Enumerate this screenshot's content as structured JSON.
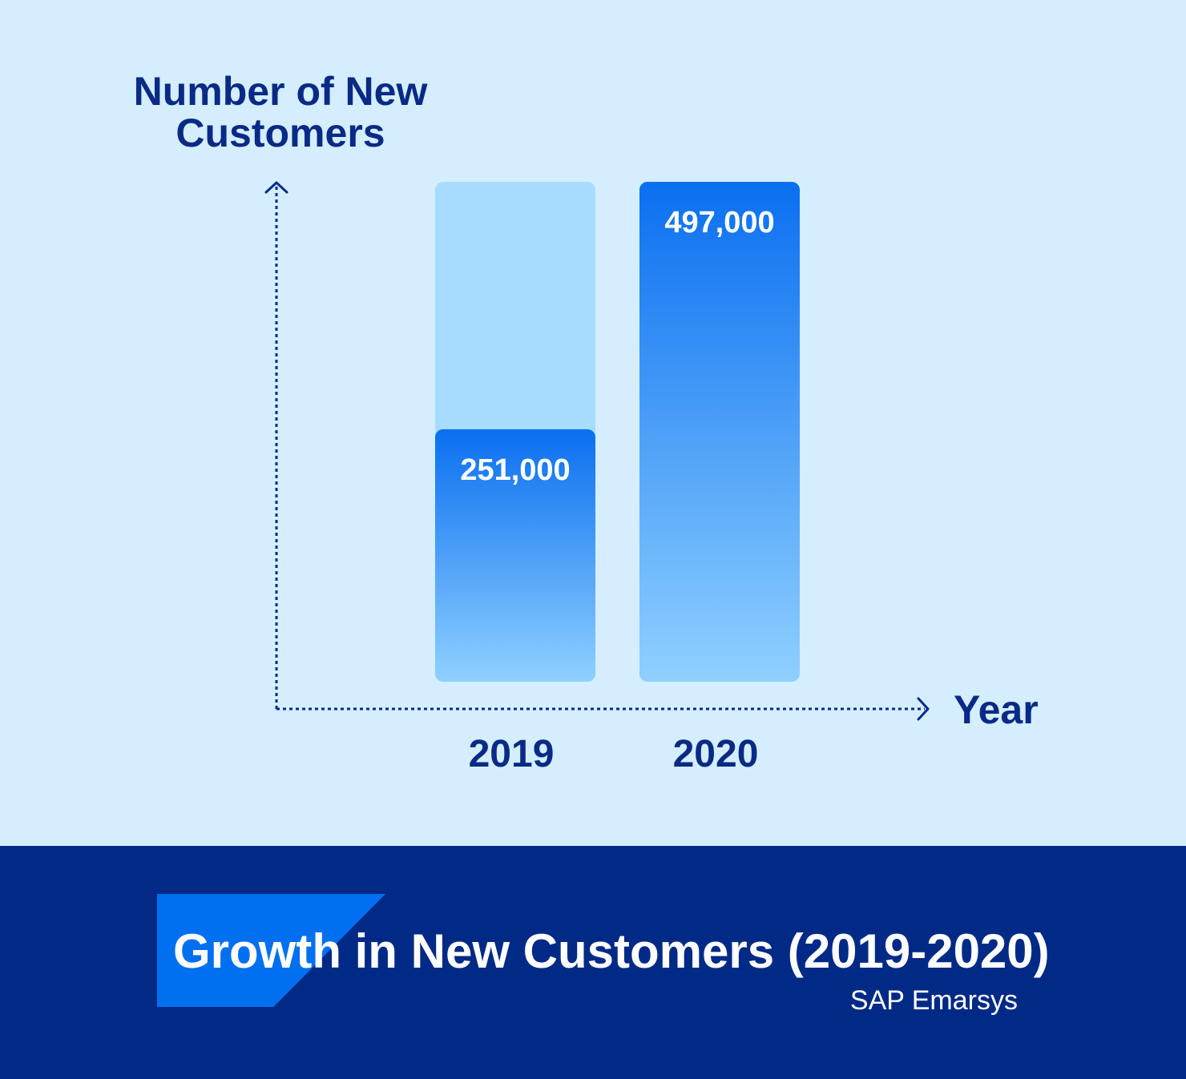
{
  "chart_data": {
    "type": "bar",
    "title": "Growth in New Customers (2019-2020)",
    "ylabel_lines": [
      "Number of New",
      "Customers"
    ],
    "xlabel": "Year",
    "categories": [
      "2019",
      "2020"
    ],
    "values": [
      251000,
      497000
    ],
    "value_labels": [
      "251,000",
      "497,000"
    ],
    "ylim": [
      0,
      497000
    ],
    "grid": false,
    "legend": "none",
    "colors": {
      "bar_top": "#0a6ff0",
      "bar_bottom": "#8fd0ff",
      "track": "#a8dcff",
      "axis": "#0a2a86"
    }
  },
  "footer": {
    "title": "Growth in New Customers (2019-2020)",
    "source": "SAP Emarsys"
  },
  "colors": {
    "background": "#d4eeff",
    "footer_background": "#002a86",
    "footer_accent": "#0070f0"
  }
}
